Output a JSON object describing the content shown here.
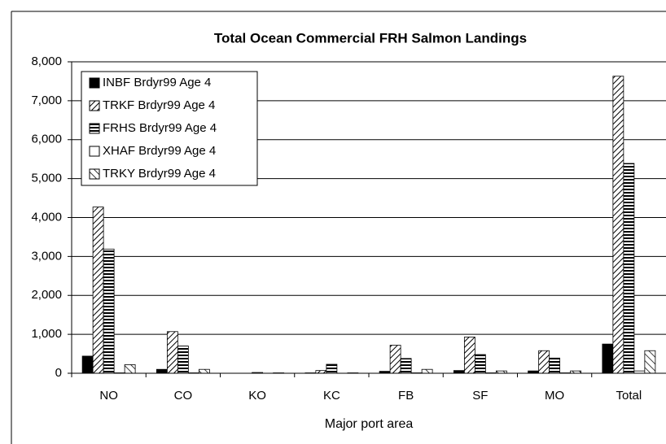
{
  "chart_data": {
    "type": "bar",
    "title": "Total Ocean Commercial FRH Salmon Landings",
    "x_label": "Major port area",
    "categories": [
      "NO",
      "CO",
      "KO",
      "KC",
      "FB",
      "SF",
      "MO",
      "Total"
    ],
    "series": [
      {
        "name": "INBF  Brdyr99 Age 4",
        "color": "#000000",
        "pattern": "solid",
        "values": [
          440,
          100,
          0,
          10,
          50,
          70,
          60,
          750
        ]
      },
      {
        "name": "TRKF Brdyr99 Age 4",
        "color": "#000000",
        "pattern": "hatch-back",
        "values": [
          4270,
          1070,
          0,
          70,
          720,
          930,
          580,
          7630
        ]
      },
      {
        "name": "FRHS Brdyr99 Age 4",
        "color": "#000000",
        "pattern": "hstripe",
        "values": [
          3190,
          700,
          20,
          230,
          380,
          480,
          390,
          5390
        ]
      },
      {
        "name": "XHAF Brdyr99 Age 4",
        "color": "#000000",
        "pattern": "none",
        "values": [
          10,
          10,
          0,
          0,
          10,
          10,
          10,
          60
        ]
      },
      {
        "name": "TRKY Brdyr99 Age 4",
        "color": "#000000",
        "pattern": "hatch",
        "values": [
          220,
          100,
          10,
          10,
          100,
          60,
          60,
          580
        ]
      }
    ],
    "ylim": [
      0,
      8000
    ],
    "yticks": [
      0,
      {
        "value": 1000,
        "label": "1,000"
      },
      {
        "value": 2000,
        "label": "2,000"
      },
      {
        "value": 3000,
        "label": "3,000"
      },
      {
        "value": 4000,
        "label": "4,000"
      },
      {
        "value": 5000,
        "label": "5,000"
      },
      {
        "value": 6000,
        "label": "6,000"
      },
      {
        "value": 7000,
        "label": "7,000"
      },
      {
        "value": 8000,
        "label": "8,000"
      }
    ],
    "grid": true,
    "legend": "top-left"
  }
}
